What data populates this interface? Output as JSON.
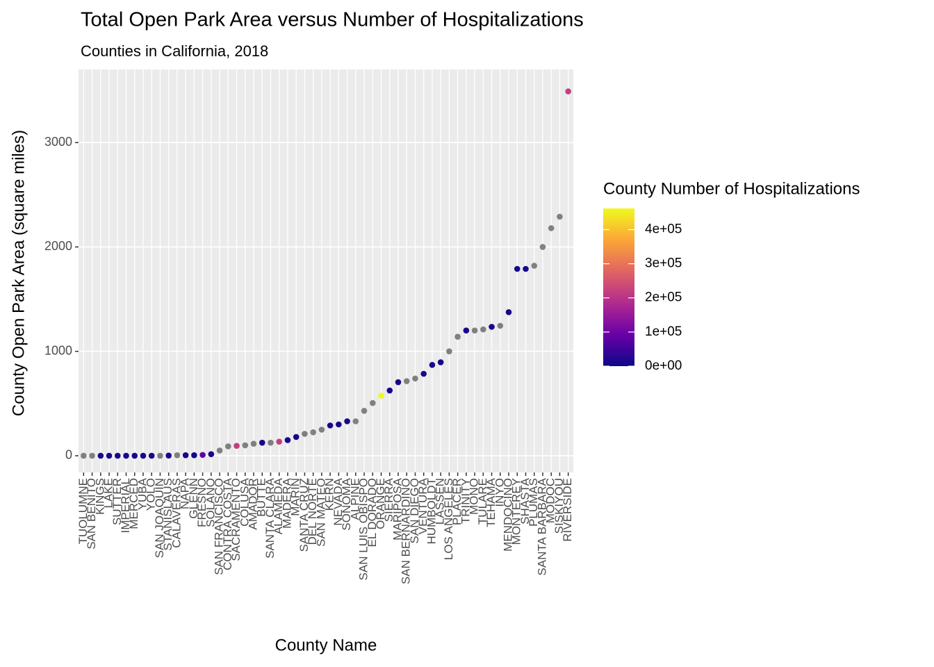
{
  "chart_data": {
    "type": "scatter",
    "title": "Total Open Park Area versus Number of Hospitalizations",
    "subtitle": "Counties in California, 2018",
    "x_label": "County Name",
    "y_label": "County Open Park Area (square miles)",
    "categories": [
      "TUOLUMNE",
      "SAN BENITO",
      "KINGS",
      "LAKE",
      "SUTTER",
      "IMPERIAL",
      "MERCED",
      "YUBA",
      "YOLO",
      "SAN JOAQUIN",
      "STANISLAUS",
      "CALAVERAS",
      "NAPA",
      "GLENN",
      "FRESNO",
      "SOLANO",
      "SAN FRANCISCO",
      "CONTRA COSTA",
      "SACRAMENTO",
      "COLUSA",
      "AMADOR",
      "BUTTE",
      "SANTA CLARA",
      "ALAMEDA",
      "MADERA",
      "MARIN",
      "SANTA CRUZ",
      "DEL NORTE",
      "SAN MATEO",
      "KERN",
      "NEVADA",
      "SONOMA",
      "ALPINE",
      "SAN LUIS OBISPO",
      "EL DORADO",
      "ORANGE",
      "SIERRA",
      "MARIPOSA",
      "SAN BERNARDINO",
      "SAN DIEGO",
      "VENTURA",
      "HUMBOLDT",
      "LASSEN",
      "LOS ANGELES",
      "PLACER",
      "TRINITY",
      "MONO",
      "TULARE",
      "TEHAMA",
      "INYO",
      "MENDOCINO",
      "MONTEREY",
      "SHASTA",
      "PLUMAS",
      "SANTA BARBARA",
      "MODOC",
      "SISKIYOU",
      "RIVERSIDE"
    ],
    "values": [
      0,
      0,
      0,
      0,
      0,
      0,
      0,
      0,
      0,
      0,
      2,
      5,
      5,
      5,
      8,
      15,
      50,
      90,
      95,
      100,
      115,
      125,
      125,
      135,
      150,
      180,
      210,
      225,
      250,
      290,
      300,
      330,
      330,
      430,
      505,
      575,
      625,
      705,
      715,
      740,
      785,
      870,
      895,
      1000,
      1140,
      1200,
      1200,
      1210,
      1235,
      1245,
      1375,
      1790,
      1790,
      1820,
      2000,
      2180,
      2290,
      3490
    ],
    "color_values": [
      null,
      null,
      10000,
      10000,
      10000,
      10000,
      10000,
      10000,
      10000,
      null,
      10000,
      null,
      10000,
      10000,
      80000,
      10000,
      null,
      null,
      220000,
      null,
      null,
      10000,
      null,
      220000,
      10000,
      10000,
      null,
      null,
      null,
      10000,
      10000,
      10000,
      null,
      null,
      null,
      460000,
      10000,
      10000,
      null,
      null,
      10000,
      10000,
      10000,
      null,
      null,
      10000,
      null,
      null,
      10000,
      null,
      10000,
      10000,
      10000,
      null,
      null,
      null,
      null,
      220000
    ],
    "na_color": "#808080",
    "legend_title": "County Number of Hospitalizations",
    "color_lim": [
      0,
      462000
    ],
    "color_ticks": [
      {
        "value": 0,
        "label": "0e+00"
      },
      {
        "value": 100000,
        "label": "1e+05"
      },
      {
        "value": 200000,
        "label": "2e+05"
      },
      {
        "value": 300000,
        "label": "3e+05"
      },
      {
        "value": 400000,
        "label": "4e+05"
      }
    ],
    "palette": [
      "#0d0887",
      "#6a00a8",
      "#b12a90",
      "#e16462",
      "#fca636",
      "#f0f921"
    ],
    "ylim": [
      -160,
      3700
    ],
    "yticks": [
      0,
      1000,
      2000,
      3000
    ],
    "grid": true
  }
}
